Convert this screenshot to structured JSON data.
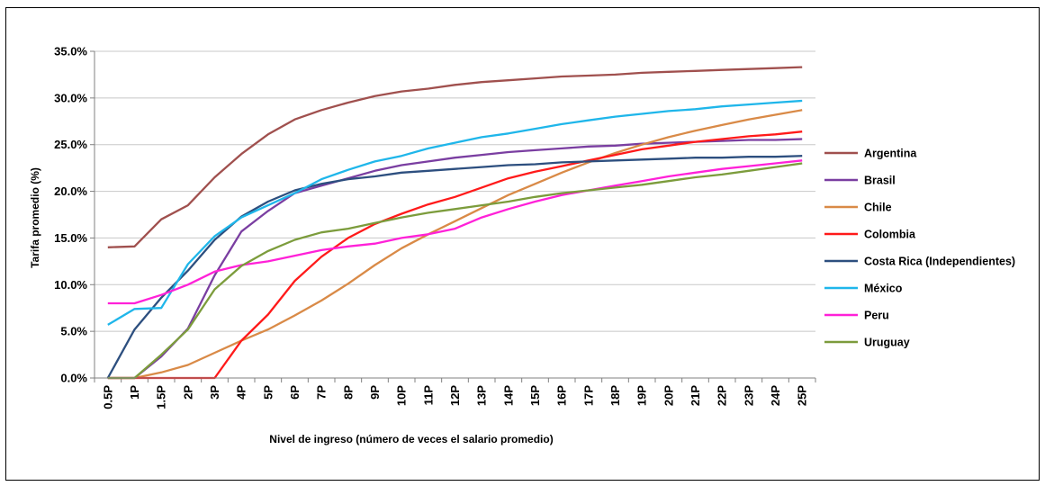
{
  "chart_data": {
    "type": "line",
    "title": "",
    "xlabel": "Nivel de ingreso (número de veces el salario promedio)",
    "ylabel": "Tarifa promedio (%)",
    "ylim": [
      0,
      35
    ],
    "yticks": [
      "0.0%",
      "5.0%",
      "10.0%",
      "15.0%",
      "20.0%",
      "25.0%",
      "30.0%",
      "35.0%"
    ],
    "grid": "horizontal",
    "legend_position": "right",
    "categories": [
      "0.5P",
      "1P",
      "1.5P",
      "2P",
      "3P",
      "4P",
      "5P",
      "6P",
      "7P",
      "8P",
      "9P",
      "10P",
      "11P",
      "12P",
      "13P",
      "14P",
      "15P",
      "16P",
      "17P",
      "18P",
      "19P",
      "20P",
      "21P",
      "22P",
      "23P",
      "24P",
      "25P"
    ],
    "series": [
      {
        "name": "Argentina",
        "color": "#a0504e",
        "values": [
          14.0,
          14.1,
          17.0,
          18.5,
          21.5,
          24.0,
          26.1,
          27.7,
          28.7,
          29.5,
          30.2,
          30.7,
          31.0,
          31.4,
          31.7,
          31.9,
          32.1,
          32.3,
          32.4,
          32.5,
          32.7,
          32.8,
          32.9,
          33.0,
          33.1,
          33.2,
          33.3
        ]
      },
      {
        "name": "Brasil",
        "color": "#7a3ea1",
        "values": [
          0.0,
          0.0,
          2.3,
          5.3,
          11.0,
          15.7,
          17.9,
          19.8,
          20.6,
          21.4,
          22.2,
          22.8,
          23.2,
          23.6,
          23.9,
          24.2,
          24.4,
          24.6,
          24.8,
          24.9,
          25.1,
          25.2,
          25.3,
          25.4,
          25.5,
          25.5,
          25.6
        ]
      },
      {
        "name": "Chile",
        "color": "#d98a47",
        "values": [
          0.0,
          0.0,
          0.6,
          1.4,
          2.7,
          4.0,
          5.2,
          6.7,
          8.3,
          10.1,
          12.1,
          13.9,
          15.4,
          16.8,
          18.2,
          19.6,
          20.8,
          22.0,
          23.1,
          24.1,
          25.0,
          25.8,
          26.5,
          27.1,
          27.7,
          28.2,
          28.7
        ]
      },
      {
        "name": "Colombia",
        "color": "#ff1a1a",
        "values": [
          0.0,
          0.0,
          0.0,
          0.0,
          0.0,
          4.0,
          6.8,
          10.4,
          13.0,
          15.0,
          16.5,
          17.6,
          18.6,
          19.4,
          20.4,
          21.4,
          22.1,
          22.7,
          23.3,
          23.9,
          24.5,
          24.9,
          25.3,
          25.6,
          25.9,
          26.1,
          26.4
        ]
      },
      {
        "name": "Costa Rica (Independientes)",
        "color": "#2d4f7f",
        "values": [
          0.0,
          5.2,
          8.6,
          11.5,
          14.8,
          17.3,
          18.9,
          20.1,
          20.8,
          21.3,
          21.6,
          22.0,
          22.2,
          22.4,
          22.6,
          22.8,
          22.9,
          23.1,
          23.2,
          23.3,
          23.4,
          23.5,
          23.6,
          23.6,
          23.7,
          23.7,
          23.8
        ]
      },
      {
        "name": "México",
        "color": "#1fb6ea",
        "values": [
          5.7,
          7.4,
          7.5,
          12.2,
          15.2,
          17.2,
          18.5,
          19.8,
          21.3,
          22.3,
          23.2,
          23.8,
          24.6,
          25.2,
          25.8,
          26.2,
          26.7,
          27.2,
          27.6,
          28.0,
          28.3,
          28.6,
          28.8,
          29.1,
          29.3,
          29.5,
          29.7
        ]
      },
      {
        "name": "Peru",
        "color": "#ff21d8",
        "values": [
          8.0,
          8.0,
          8.9,
          10.0,
          11.4,
          12.1,
          12.5,
          13.1,
          13.7,
          14.1,
          14.4,
          15.0,
          15.4,
          16.0,
          17.2,
          18.1,
          18.9,
          19.6,
          20.1,
          20.6,
          21.1,
          21.6,
          22.0,
          22.4,
          22.7,
          23.0,
          23.3
        ]
      },
      {
        "name": "Uruguay",
        "color": "#7c9c3c",
        "values": [
          0.0,
          0.0,
          2.5,
          5.2,
          9.5,
          12.0,
          13.6,
          14.8,
          15.6,
          16.0,
          16.6,
          17.2,
          17.7,
          18.1,
          18.5,
          18.9,
          19.4,
          19.8,
          20.1,
          20.4,
          20.7,
          21.1,
          21.5,
          21.8,
          22.2,
          22.6,
          23.0
        ]
      }
    ]
  }
}
